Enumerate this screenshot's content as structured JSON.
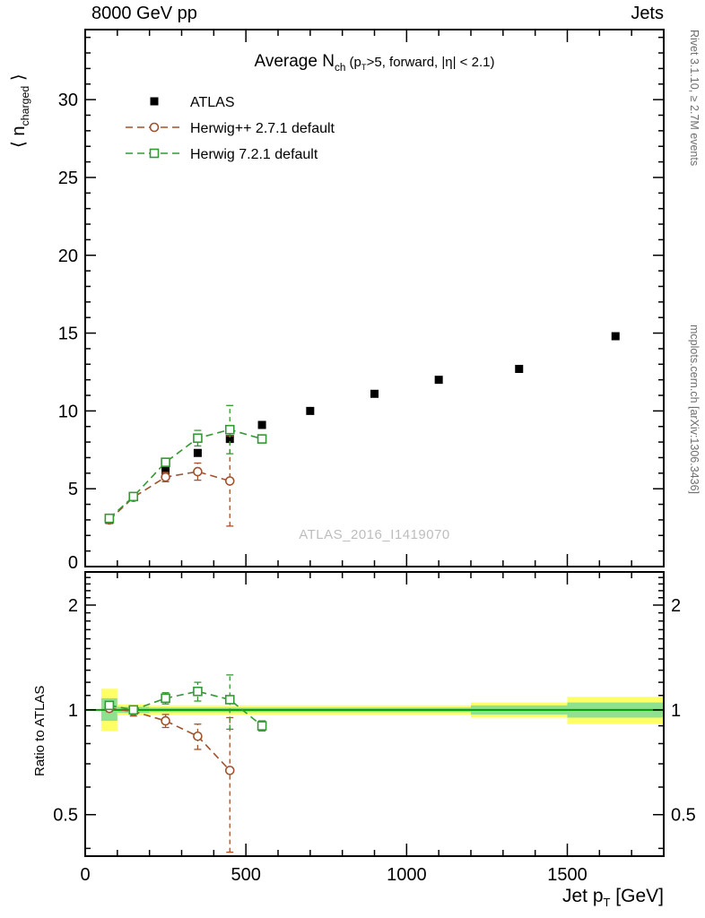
{
  "header": {
    "left": "8000 GeV pp",
    "right": "Jets"
  },
  "plot_title": {
    "main": "Average N",
    "sub_ch": "ch",
    "paren_open": " (p",
    "sub_T": "T",
    "paren_rest": ">5, forward, |η| < 2.1)"
  },
  "axis_labels": {
    "y_pre": "⟨ n",
    "y_sub": "charged",
    "y_post": " ⟩",
    "ratio": "Ratio to ATLAS",
    "x_pre": "Jet p",
    "x_sub": "T",
    "x_post": " [GeV]"
  },
  "side_notes": {
    "top_right": "Rivet 3.1.10, ≥ 2.7M events",
    "bottom_right": "mcplots.cern.ch [arXiv:1306.3436]"
  },
  "watermark": "ATLAS_2016_I1419070",
  "chart_data": {
    "type": "scatter",
    "title": "Average N_ch (p_T>5, forward, |η| < 2.1)",
    "xlabel": "Jet p_T [GeV]",
    "ylabel": "⟨ n_charged ⟩",
    "xlim": [
      0,
      1800
    ],
    "ylim": [
      0,
      34.5
    ],
    "x_major_ticks": [
      0,
      500,
      1000,
      1500
    ],
    "x_minor_step": 100,
    "y_major_ticks": [
      0,
      5,
      10,
      15,
      20,
      25,
      30
    ],
    "y_minor_step": 1,
    "grid": false,
    "legend_position": "top-left",
    "series": [
      {
        "name": "ATLAS",
        "marker": "square-filled",
        "color": "#000000",
        "line": "none",
        "x": [
          75,
          150,
          250,
          350,
          450,
          550,
          700,
          900,
          1100,
          1350,
          1650
        ],
        "y": [
          3.0,
          4.5,
          6.2,
          7.3,
          8.2,
          9.1,
          10.0,
          11.1,
          12.0,
          12.7,
          14.8
        ]
      },
      {
        "name": "Herwig++ 2.7.1 default",
        "marker": "circle-open",
        "color": "#a0522d",
        "line": "dashed",
        "x": [
          75,
          150,
          250,
          350,
          450
        ],
        "y": [
          3.0,
          4.45,
          5.75,
          6.1,
          5.5
        ],
        "yerr": [
          0.08,
          0.12,
          0.3,
          0.55,
          2.9
        ]
      },
      {
        "name": "Herwig 7.2.1 default",
        "marker": "square-open",
        "color": "#339933",
        "line": "dashed",
        "x": [
          75,
          150,
          250,
          350,
          450,
          550
        ],
        "y": [
          3.1,
          4.5,
          6.7,
          8.25,
          8.8,
          8.2
        ],
        "yerr": [
          0.08,
          0.12,
          0.25,
          0.5,
          1.55,
          0.2
        ]
      }
    ],
    "ratio": {
      "ylabel": "Ratio to ATLAS",
      "yscale": "log",
      "ylim": [
        0.38,
        2.49
      ],
      "y_major_ticks": [
        0.5,
        1,
        2
      ],
      "y_minor_ticks": [
        0.4,
        0.6,
        0.7,
        0.8,
        0.9,
        1.1,
        1.2,
        1.3,
        1.4,
        1.5,
        1.6,
        1.7,
        1.8,
        1.9,
        2.1,
        2.2,
        2.3,
        2.4
      ],
      "reference_line": 1,
      "band_colors": {
        "outer": "#ffff66",
        "inner": "#8fe08f",
        "line": "#00a000"
      },
      "bands": [
        {
          "x0": 50,
          "x1": 100,
          "outer": [
            0.87,
            1.15
          ],
          "inner": [
            0.93,
            1.08
          ]
        },
        {
          "x0": 100,
          "x1": 200,
          "outer": [
            0.965,
            1.035
          ],
          "inner": [
            0.98,
            1.02
          ]
        },
        {
          "x0": 200,
          "x1": 1200,
          "outer": [
            0.97,
            1.03
          ],
          "inner": [
            0.985,
            1.015
          ]
        },
        {
          "x0": 1200,
          "x1": 1500,
          "outer": [
            0.95,
            1.05
          ],
          "inner": [
            0.97,
            1.03
          ]
        },
        {
          "x0": 1500,
          "x1": 1800,
          "outer": [
            0.91,
            1.09
          ],
          "inner": [
            0.95,
            1.05
          ]
        }
      ],
      "series": [
        {
          "name": "Herwig++ 2.7.1 default",
          "marker": "circle-open",
          "color": "#a0522d",
          "line": "dashed",
          "x": [
            75,
            150,
            250,
            350,
            450
          ],
          "y": [
            1.01,
            0.99,
            0.93,
            0.84,
            0.67
          ],
          "yerr": [
            0.02,
            0.03,
            0.04,
            0.07,
            0.28
          ]
        },
        {
          "name": "Herwig 7.2.1 default",
          "marker": "square-open",
          "color": "#339933",
          "line": "dashed",
          "x": [
            75,
            150,
            250,
            350,
            450,
            550
          ],
          "y": [
            1.03,
            1.0,
            1.08,
            1.13,
            1.07,
            0.9
          ],
          "yerr": [
            0.02,
            0.02,
            0.04,
            0.07,
            0.19,
            0.03
          ]
        }
      ]
    }
  }
}
